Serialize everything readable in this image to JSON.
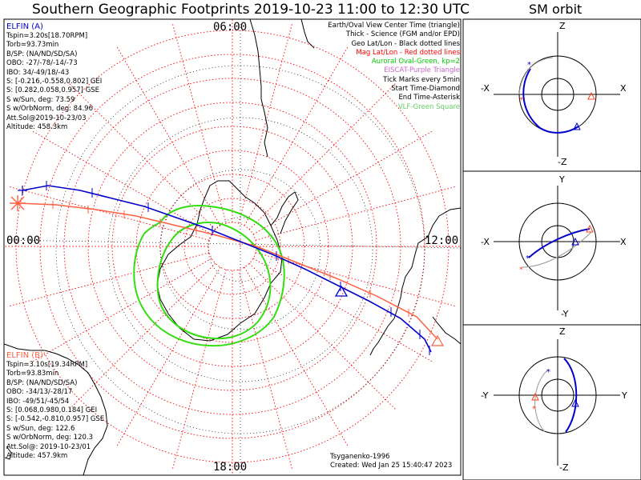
{
  "title": "Southern Geographic Footprints 2019-10-23 11:00 to 12:30 UTC",
  "sm_title": "SM orbit",
  "mlt_labels": {
    "top": "06:00",
    "left": "00:00",
    "right": "12:00",
    "bottom": "18:00"
  },
  "elfin_a": {
    "header": "ELFIN (A)",
    "color": "#0000cc",
    "lines": [
      "Tspin=3.20s[18.70RPM]",
      "Torb=93.73min",
      "B/SP: (NA/ND/SD/SA)",
      "OBO: -27/-78/-14/-73",
      "IBO: 34/-49/18/-43",
      "S: [-0.216,-0.558,0.802] GEI",
      "S: [0.282,0.058,0.957] GSE",
      "S w/Sun, deg: 73.59",
      "S w/OrbNorm, deg: 84.96",
      "Att.Sol@2019-10-23/03",
      "Altitude: 458.3km"
    ]
  },
  "elfin_b": {
    "header": "ELFIN (B)",
    "color": "#ff6040",
    "lines": [
      "Tspin=3.10s[19.34RPM]",
      "Torb=93.83min",
      "B/SP: (NA/ND/SD/SA)",
      "OBO: -34/13/-28/17",
      "IBO: -49/51/-45/54",
      "S: [0.068,0.980,0.184] GEI",
      "S: [-0.542,-0.810,0.957] GSE",
      "S w/Sun, deg: 122.6",
      "S w/OrbNorm, deg: 120.3",
      "Att.Sol@: 2019-10-23/01",
      "Altitude: 457.9km"
    ]
  },
  "legend": [
    {
      "text": "Earth/Oval View Center Time (triangle)",
      "color": "#000000"
    },
    {
      "text": "Thick - Science (FGM and/or EPD)",
      "color": "#000000"
    },
    {
      "text": "Geo Lat/Lon - Black dotted lines",
      "color": "#000000"
    },
    {
      "text": "Mag Lat/Lon - Red dotted lines",
      "color": "#ff0000"
    },
    {
      "text": "Auroral Oval-Green, kp=2",
      "color": "#00cc00"
    },
    {
      "text": "EISCAT-Purple Triangle",
      "color": "#cc66cc"
    },
    {
      "text": "Tick Marks every 5min",
      "color": "#000000"
    },
    {
      "text": "Start Time-Diamond",
      "color": "#000000"
    },
    {
      "text": "End Time-Asterisk",
      "color": "#000000"
    },
    {
      "text": "VLF-Green Square",
      "color": "#66cc66"
    }
  ],
  "credits": {
    "model": "Tsyganenko-1996",
    "created": "Created: Wed Jan 25 15:40:47 2023"
  },
  "sm_panels": [
    {
      "top": "Z",
      "bottom": "-Z",
      "left": "-X",
      "right": "X"
    },
    {
      "top": "Y",
      "bottom": "-Y",
      "left": "-X",
      "right": "X"
    },
    {
      "top": "Z",
      "bottom": "-Z",
      "left": "-Y",
      "right": "Y"
    }
  ],
  "colors": {
    "elfin_a": "#0000cc",
    "elfin_b": "#ff6040",
    "mag_grid": "#ff0000",
    "geo_grid": "#000000",
    "auroral_oval": "#33dd11",
    "view_triangle": "#ff0000",
    "orbit_shadow": "#999999"
  }
}
